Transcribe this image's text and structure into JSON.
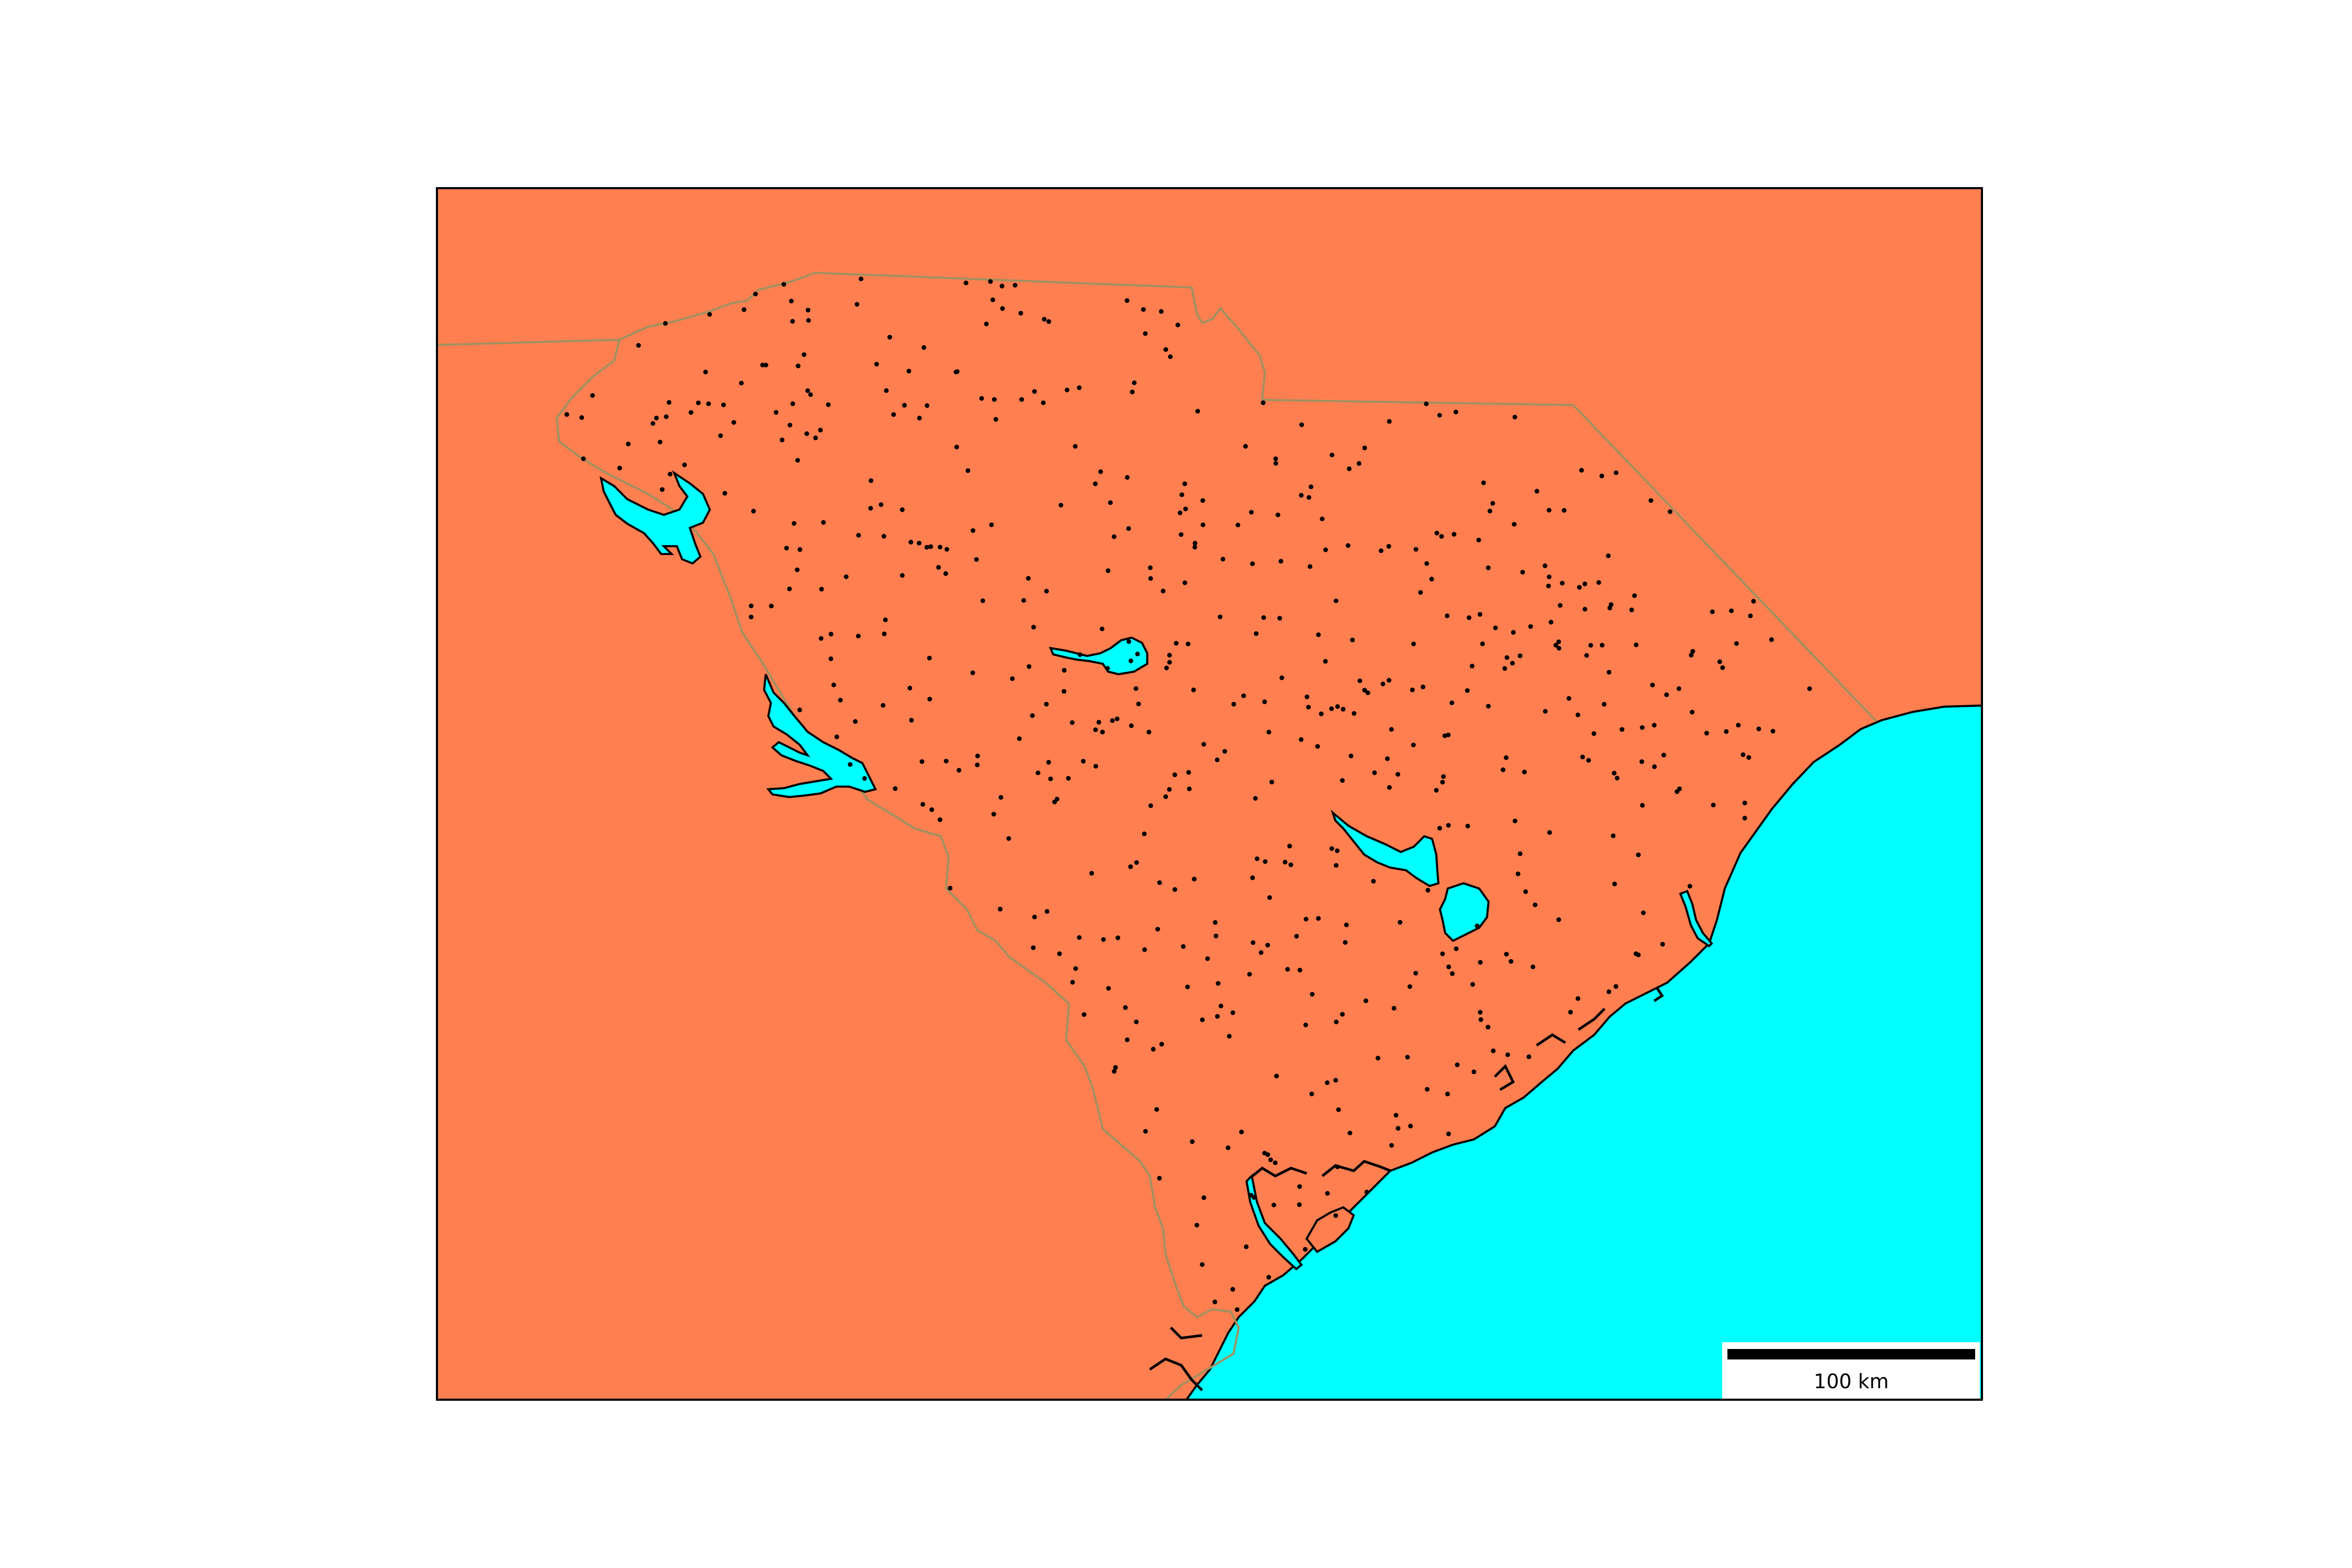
{
  "map": {
    "colors": {
      "land": "#FF7F50",
      "water": "#00FFFF",
      "state_border": "#A09060",
      "coastline": "#000000",
      "points": "#000000",
      "frame": "#000000",
      "scalebar_box": "#FFFFFF"
    },
    "scalebar": {
      "label": "100 km"
    }
  }
}
